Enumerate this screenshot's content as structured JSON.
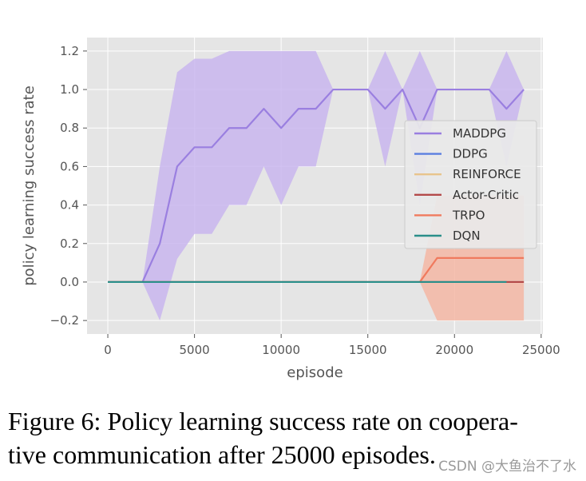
{
  "chart_data": {
    "type": "line",
    "xlabel": "episode",
    "ylabel": "policy learning success rate",
    "xlim": [
      -1200,
      25100
    ],
    "ylim": [
      -0.27,
      1.27
    ],
    "xticks": [
      0,
      5000,
      10000,
      15000,
      20000,
      25000
    ],
    "yticks": [
      -0.2,
      0.0,
      0.2,
      0.4,
      0.6,
      0.8,
      1.0,
      1.2
    ],
    "xtick_labels": [
      "0",
      "5000",
      "10000",
      "15000",
      "20000",
      "25000"
    ],
    "ytick_labels": [
      "−0.2",
      "0.0",
      "0.2",
      "0.4",
      "0.6",
      "0.8",
      "1.0",
      "1.2"
    ],
    "grid": true,
    "legend_position": "center-right",
    "series": [
      {
        "name": "MADDPG",
        "color": "#9a7fe0",
        "band_color": "#c9b6ee",
        "x": [
          0,
          1000,
          2000,
          3000,
          4000,
          5000,
          6000,
          7000,
          8000,
          9000,
          10000,
          11000,
          12000,
          13000,
          14000,
          15000,
          16000,
          17000,
          18000,
          19000,
          20000,
          21000,
          22000,
          23000,
          24000
        ],
        "y": [
          0,
          0,
          0,
          0.2,
          0.6,
          0.7,
          0.7,
          0.8,
          0.8,
          0.9,
          0.8,
          0.9,
          0.9,
          1.0,
          1.0,
          1.0,
          0.9,
          1.0,
          0.8,
          1.0,
          1.0,
          1.0,
          1.0,
          0.9,
          1.0
        ],
        "lower": [
          0,
          0,
          0,
          -0.2,
          0.12,
          0.25,
          0.25,
          0.4,
          0.4,
          0.6,
          0.4,
          0.6,
          0.6,
          1.0,
          1.0,
          1.0,
          0.6,
          1.0,
          0.4,
          1.0,
          1.0,
          1.0,
          1.0,
          0.6,
          1.0
        ],
        "upper": [
          0,
          0,
          0,
          0.6,
          1.09,
          1.16,
          1.16,
          1.2,
          1.2,
          1.2,
          1.2,
          1.2,
          1.2,
          1.0,
          1.0,
          1.0,
          1.2,
          1.0,
          1.2,
          1.0,
          1.0,
          1.0,
          1.0,
          1.2,
          1.0
        ]
      },
      {
        "name": "DDPG",
        "color": "#5b7fe0",
        "x": [
          0,
          24000
        ],
        "y": [
          0,
          0
        ]
      },
      {
        "name": "REINFORCE",
        "color": "#e8c48c",
        "x": [
          0,
          24000
        ],
        "y": [
          0,
          0
        ]
      },
      {
        "name": "Actor-Critic",
        "color": "#b44a4a",
        "x": [
          0,
          24000
        ],
        "y": [
          0,
          0
        ]
      },
      {
        "name": "TRPO",
        "color": "#f07a5e",
        "band_color": "#f4b7a5",
        "x": [
          0,
          17000,
          18000,
          19000,
          20000,
          21000,
          22000,
          23000,
          24000
        ],
        "y": [
          0,
          0,
          0,
          0.125,
          0.125,
          0.125,
          0.125,
          0.125,
          0.125
        ],
        "lower": [
          0,
          0,
          0,
          -0.2,
          -0.2,
          -0.2,
          -0.2,
          -0.2,
          -0.2
        ],
        "upper": [
          0,
          0,
          0,
          0.45,
          0.45,
          0.45,
          0.45,
          0.45,
          0.45
        ]
      },
      {
        "name": "DQN",
        "color": "#2a8f8a",
        "x": [
          0,
          23000
        ],
        "y": [
          0,
          0
        ]
      }
    ]
  },
  "caption": {
    "line1": "Figure 6:  Policy learning success rate on coopera-",
    "line2": "tive communication after 25000 episodes."
  },
  "watermark": "CSDN @大鱼治不了水"
}
